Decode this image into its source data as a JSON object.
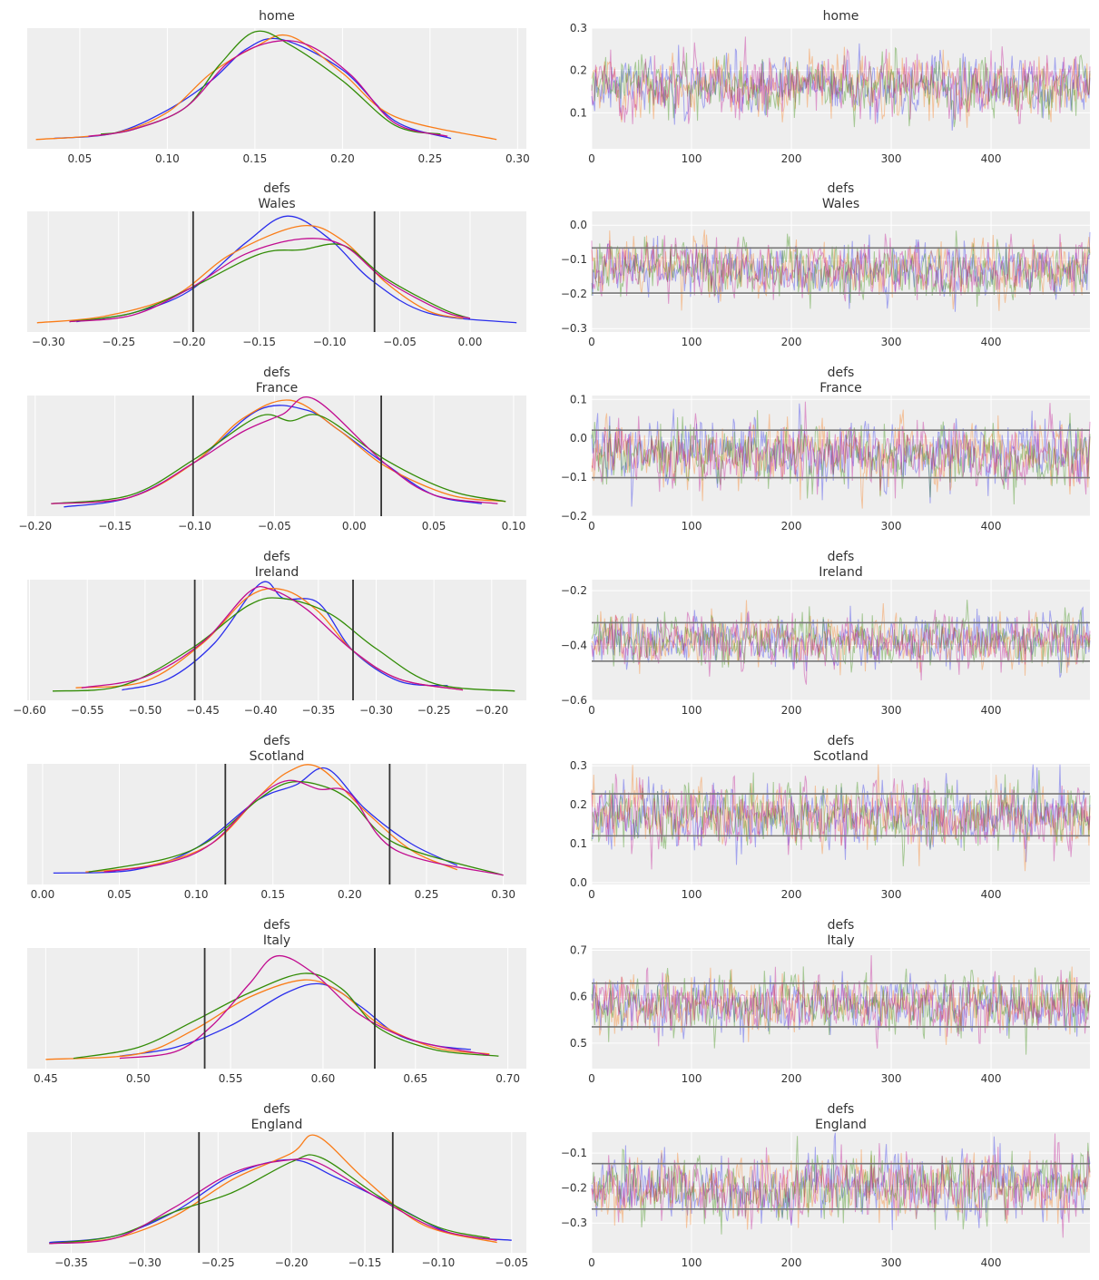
{
  "figure": {
    "type": "arviz-traceplot",
    "chains": 4,
    "draws": 500
  },
  "colors": {
    "chains": [
      "#2a2eec",
      "#fa7c17",
      "#328c06",
      "#c10c90"
    ],
    "panel_bg": "#eeeeee",
    "grid": "#ffffff",
    "ref_line_kde": "#333333",
    "ref_line_trace": "#777777"
  },
  "chart_data": [
    {
      "type": "line",
      "panel": "kde",
      "title": "home",
      "subtitle": "",
      "xlim": [
        0.02,
        0.305
      ],
      "xticks": [
        "0.05",
        "0.10",
        "0.15",
        "0.20",
        "0.25",
        "0.30"
      ],
      "yticks": [],
      "grid": true,
      "ref_lines": [],
      "series": [
        {
          "x": [
            0.035,
            0.07,
            0.1,
            0.125,
            0.145,
            0.165,
            0.2,
            0.23,
            0.262
          ],
          "y": [
            0.02,
            0.07,
            0.28,
            0.55,
            0.84,
            0.93,
            0.65,
            0.18,
            0.02
          ]
        },
        {
          "x": [
            0.025,
            0.07,
            0.1,
            0.125,
            0.15,
            0.17,
            0.2,
            0.23,
            0.288
          ],
          "y": [
            0.01,
            0.07,
            0.26,
            0.62,
            0.86,
            0.96,
            0.62,
            0.22,
            0.01
          ]
        },
        {
          "x": [
            0.062,
            0.08,
            0.11,
            0.13,
            0.15,
            0.17,
            0.2,
            0.23,
            0.256
          ],
          "y": [
            0.06,
            0.1,
            0.3,
            0.7,
            1.0,
            0.88,
            0.55,
            0.14,
            0.06
          ]
        },
        {
          "x": [
            0.055,
            0.08,
            0.11,
            0.135,
            0.158,
            0.18,
            0.205,
            0.23,
            0.26
          ],
          "y": [
            0.04,
            0.1,
            0.3,
            0.72,
            0.9,
            0.88,
            0.6,
            0.16,
            0.04
          ]
        }
      ]
    },
    {
      "type": "line",
      "panel": "trace",
      "title": "home",
      "subtitle": "",
      "xlim": [
        0,
        499
      ],
      "ylim": [
        0.015,
        0.3
      ],
      "xticks": [
        "0",
        "100",
        "200",
        "300",
        "400"
      ],
      "yticks": [
        "0.1",
        "0.2",
        "0.3"
      ],
      "center": 0.163,
      "spread": 0.035,
      "ref_lines": []
    },
    {
      "type": "line",
      "panel": "kde",
      "title": "defs",
      "subtitle": "Wales",
      "xlim": [
        -0.315,
        0.04
      ],
      "xticks": [
        "−0.30",
        "−0.25",
        "−0.20",
        "−0.15",
        "−0.10",
        "−0.05",
        "0.00"
      ],
      "yticks": [],
      "grid": true,
      "ref_lines": [
        -0.197,
        -0.068
      ],
      "series": [
        {
          "x": [
            -0.28,
            -0.24,
            -0.2,
            -0.16,
            -0.13,
            -0.1,
            -0.07,
            -0.03,
            0.033
          ],
          "y": [
            0.02,
            0.1,
            0.3,
            0.74,
            0.99,
            0.78,
            0.4,
            0.1,
            0.01
          ]
        },
        {
          "x": [
            -0.308,
            -0.26,
            -0.21,
            -0.17,
            -0.12,
            -0.09,
            -0.06,
            -0.03,
            -0.005
          ],
          "y": [
            0.01,
            0.07,
            0.26,
            0.64,
            0.9,
            0.76,
            0.38,
            0.12,
            0.05
          ]
        },
        {
          "x": [
            -0.285,
            -0.24,
            -0.2,
            -0.15,
            -0.12,
            -0.09,
            -0.06,
            -0.02,
            0.0
          ],
          "y": [
            0.02,
            0.1,
            0.32,
            0.64,
            0.68,
            0.72,
            0.42,
            0.14,
            0.05
          ]
        },
        {
          "x": [
            -0.285,
            -0.24,
            -0.2,
            -0.16,
            -0.12,
            -0.09,
            -0.06,
            -0.02,
            0.0
          ],
          "y": [
            0.02,
            0.08,
            0.32,
            0.64,
            0.78,
            0.72,
            0.4,
            0.12,
            0.05
          ]
        }
      ]
    },
    {
      "type": "line",
      "panel": "trace",
      "title": "defs",
      "subtitle": "Wales",
      "xlim": [
        0,
        499
      ],
      "ylim": [
        -0.31,
        0.04
      ],
      "xticks": [
        "0",
        "100",
        "200",
        "300",
        "400"
      ],
      "yticks": [
        "−0.3",
        "−0.2",
        "−0.1",
        "0.0"
      ],
      "center": -0.13,
      "spread": 0.04,
      "ref_lines": [
        -0.197,
        -0.066
      ]
    },
    {
      "type": "line",
      "panel": "kde",
      "title": "defs",
      "subtitle": "France",
      "xlim": [
        -0.205,
        0.108
      ],
      "xticks": [
        "−0.20",
        "−0.15",
        "−0.10",
        "−0.05",
        "0.00",
        "0.05",
        "0.10"
      ],
      "yticks": [],
      "grid": true,
      "ref_lines": [
        -0.101,
        0.017
      ],
      "series": [
        {
          "x": [
            -0.182,
            -0.14,
            -0.1,
            -0.06,
            -0.03,
            -0.01,
            0.02,
            0.05,
            0.08
          ],
          "y": [
            0.01,
            0.1,
            0.42,
            0.9,
            0.9,
            0.72,
            0.4,
            0.12,
            0.04
          ]
        },
        {
          "x": [
            -0.19,
            -0.14,
            -0.1,
            -0.07,
            -0.04,
            -0.01,
            0.02,
            0.06,
            0.095
          ],
          "y": [
            0.04,
            0.1,
            0.42,
            0.82,
            0.99,
            0.72,
            0.38,
            0.12,
            0.06
          ]
        },
        {
          "x": [
            -0.19,
            -0.14,
            -0.1,
            -0.06,
            -0.04,
            -0.02,
            0.02,
            0.06,
            0.095
          ],
          "y": [
            0.04,
            0.12,
            0.45,
            0.84,
            0.8,
            0.84,
            0.44,
            0.16,
            0.06
          ]
        },
        {
          "x": [
            -0.19,
            -0.14,
            -0.1,
            -0.07,
            -0.045,
            -0.025,
            0.02,
            0.05,
            0.09
          ],
          "y": [
            0.04,
            0.1,
            0.42,
            0.7,
            0.86,
            1.0,
            0.4,
            0.12,
            0.04
          ]
        }
      ]
    },
    {
      "type": "line",
      "panel": "trace",
      "title": "defs",
      "subtitle": "France",
      "xlim": [
        0,
        499
      ],
      "ylim": [
        -0.2,
        0.11
      ],
      "xticks": [
        "0",
        "100",
        "200",
        "300",
        "400"
      ],
      "yticks": [
        "−0.2",
        "−0.1",
        "0.0",
        "0.1"
      ],
      "center": -0.04,
      "spread": 0.04,
      "ref_lines": [
        -0.101,
        0.021
      ]
    },
    {
      "type": "line",
      "panel": "kde",
      "title": "defs",
      "subtitle": "Ireland",
      "xlim": [
        -0.602,
        -0.17
      ],
      "xticks": [
        "−0.60",
        "−0.55",
        "−0.50",
        "−0.45",
        "−0.40",
        "−0.35",
        "−0.30",
        "−0.25",
        "−0.20"
      ],
      "yticks": [],
      "grid": true,
      "ref_lines": [
        -0.457,
        -0.32
      ],
      "series": [
        {
          "x": [
            -0.52,
            -0.48,
            -0.44,
            -0.4,
            -0.38,
            -0.35,
            -0.32,
            -0.28,
            -0.238
          ],
          "y": [
            0.02,
            0.12,
            0.45,
            1.0,
            0.86,
            0.82,
            0.38,
            0.1,
            0.06
          ]
        },
        {
          "x": [
            -0.56,
            -0.5,
            -0.45,
            -0.41,
            -0.38,
            -0.35,
            -0.32,
            -0.28,
            -0.225
          ],
          "y": [
            0.04,
            0.1,
            0.45,
            0.88,
            0.94,
            0.74,
            0.38,
            0.12,
            0.02
          ]
        },
        {
          "x": [
            -0.58,
            -0.52,
            -0.46,
            -0.41,
            -0.38,
            -0.34,
            -0.3,
            -0.25,
            -0.18
          ],
          "y": [
            0.01,
            0.06,
            0.4,
            0.8,
            0.86,
            0.72,
            0.4,
            0.08,
            0.01
          ]
        },
        {
          "x": [
            -0.555,
            -0.5,
            -0.45,
            -0.41,
            -0.39,
            -0.36,
            -0.32,
            -0.28,
            -0.225
          ],
          "y": [
            0.04,
            0.14,
            0.46,
            0.92,
            0.94,
            0.76,
            0.38,
            0.12,
            0.02
          ]
        }
      ]
    },
    {
      "type": "line",
      "panel": "trace",
      "title": "defs",
      "subtitle": "Ireland",
      "xlim": [
        0,
        499
      ],
      "ylim": [
        -0.6,
        -0.16
      ],
      "xticks": [
        "0",
        "100",
        "200",
        "300",
        "400"
      ],
      "yticks": [
        "−0.6",
        "−0.4",
        "−0.2"
      ],
      "center": -0.385,
      "spread": 0.045,
      "ref_lines": [
        -0.457,
        -0.317
      ]
    },
    {
      "type": "line",
      "panel": "kde",
      "title": "defs",
      "subtitle": "Scotland",
      "xlim": [
        -0.01,
        0.315
      ],
      "xticks": [
        "0.00",
        "0.05",
        "0.10",
        "0.15",
        "0.20",
        "0.25",
        "0.30"
      ],
      "yticks": [],
      "grid": true,
      "ref_lines": [
        0.119,
        0.226
      ],
      "series": [
        {
          "x": [
            0.007,
            0.06,
            0.1,
            0.14,
            0.165,
            0.185,
            0.21,
            0.24,
            0.27
          ],
          "y": [
            0.03,
            0.06,
            0.26,
            0.7,
            0.84,
            0.99,
            0.62,
            0.3,
            0.1
          ]
        },
        {
          "x": [
            0.028,
            0.07,
            0.11,
            0.14,
            0.16,
            0.18,
            0.21,
            0.24,
            0.27
          ],
          "y": [
            0.04,
            0.1,
            0.3,
            0.72,
            0.96,
            1.0,
            0.6,
            0.24,
            0.06
          ]
        },
        {
          "x": [
            0.03,
            0.08,
            0.11,
            0.14,
            0.16,
            0.18,
            0.2,
            0.23,
            0.3
          ],
          "y": [
            0.04,
            0.16,
            0.34,
            0.7,
            0.86,
            0.84,
            0.7,
            0.3,
            0.01
          ]
        },
        {
          "x": [
            0.04,
            0.08,
            0.11,
            0.14,
            0.16,
            0.18,
            0.2,
            0.23,
            0.3
          ],
          "y": [
            0.04,
            0.12,
            0.3,
            0.72,
            0.88,
            0.8,
            0.76,
            0.24,
            0.01
          ]
        }
      ]
    },
    {
      "type": "line",
      "panel": "trace",
      "title": "defs",
      "subtitle": "Scotland",
      "xlim": [
        0,
        499
      ],
      "ylim": [
        -0.005,
        0.305
      ],
      "xticks": [
        "0",
        "100",
        "200",
        "300",
        "400"
      ],
      "yticks": [
        "0.0",
        "0.1",
        "0.2",
        "0.3"
      ],
      "center": 0.173,
      "spread": 0.04,
      "ref_lines": [
        0.12,
        0.228
      ]
    },
    {
      "type": "line",
      "panel": "kde",
      "title": "defs",
      "subtitle": "Italy",
      "xlim": [
        0.44,
        0.71
      ],
      "xticks": [
        "0.45",
        "0.50",
        "0.55",
        "0.60",
        "0.65",
        "0.70"
      ],
      "yticks": [],
      "grid": true,
      "ref_lines": [
        0.536,
        0.628
      ],
      "series": [
        {
          "x": [
            0.49,
            0.52,
            0.55,
            0.58,
            0.6,
            0.62,
            0.64,
            0.66,
            0.68
          ],
          "y": [
            0.04,
            0.12,
            0.32,
            0.62,
            0.7,
            0.5,
            0.24,
            0.14,
            0.1
          ]
        },
        {
          "x": [
            0.45,
            0.5,
            0.53,
            0.56,
            0.59,
            0.61,
            0.63,
            0.66,
            0.69
          ],
          "y": [
            0.01,
            0.06,
            0.28,
            0.58,
            0.74,
            0.62,
            0.34,
            0.12,
            0.06
          ]
        },
        {
          "x": [
            0.465,
            0.5,
            0.53,
            0.56,
            0.59,
            0.61,
            0.63,
            0.66,
            0.695
          ],
          "y": [
            0.02,
            0.12,
            0.36,
            0.62,
            0.8,
            0.66,
            0.3,
            0.1,
            0.04
          ]
        },
        {
          "x": [
            0.49,
            0.52,
            0.54,
            0.56,
            0.575,
            0.595,
            0.62,
            0.65,
            0.69
          ],
          "y": [
            0.02,
            0.08,
            0.32,
            0.7,
            0.96,
            0.8,
            0.42,
            0.18,
            0.05
          ]
        }
      ]
    },
    {
      "type": "line",
      "panel": "trace",
      "title": "defs",
      "subtitle": "Italy",
      "xlim": [
        0,
        499
      ],
      "ylim": [
        0.445,
        0.705
      ],
      "xticks": [
        "0",
        "100",
        "200",
        "300",
        "400"
      ],
      "yticks": [
        "0.5",
        "0.6",
        "0.7"
      ],
      "center": 0.585,
      "spread": 0.03,
      "ref_lines": [
        0.535,
        0.629
      ]
    },
    {
      "type": "line",
      "panel": "kde",
      "title": "defs",
      "subtitle": "England",
      "xlim": [
        -0.38,
        -0.04
      ],
      "xticks": [
        "−0.35",
        "−0.30",
        "−0.25",
        "−0.20",
        "−0.15",
        "−0.10",
        "−0.05"
      ],
      "yticks": [],
      "grid": true,
      "ref_lines": [
        -0.263,
        -0.131
      ],
      "series": [
        {
          "x": [
            -0.365,
            -0.32,
            -0.28,
            -0.24,
            -0.2,
            -0.17,
            -0.13,
            -0.09,
            -0.05
          ],
          "y": [
            0.02,
            0.08,
            0.3,
            0.64,
            0.78,
            0.62,
            0.36,
            0.1,
            0.04
          ]
        },
        {
          "x": [
            -0.365,
            -0.32,
            -0.28,
            -0.24,
            -0.2,
            -0.183,
            -0.15,
            -0.11,
            -0.06
          ],
          "y": [
            0.01,
            0.06,
            0.26,
            0.6,
            0.84,
            1.0,
            0.6,
            0.18,
            0.02
          ]
        },
        {
          "x": [
            -0.365,
            -0.32,
            -0.28,
            -0.24,
            -0.2,
            -0.18,
            -0.14,
            -0.1,
            -0.065
          ],
          "y": [
            0.01,
            0.08,
            0.3,
            0.48,
            0.76,
            0.8,
            0.44,
            0.16,
            0.06
          ]
        },
        {
          "x": [
            -0.365,
            -0.32,
            -0.28,
            -0.24,
            -0.2,
            -0.18,
            -0.14,
            -0.1,
            -0.06
          ],
          "y": [
            0.01,
            0.06,
            0.34,
            0.66,
            0.78,
            0.74,
            0.42,
            0.14,
            0.04
          ]
        }
      ]
    },
    {
      "type": "line",
      "panel": "trace",
      "title": "defs",
      "subtitle": "England",
      "xlim": [
        0,
        499
      ],
      "ylim": [
        -0.385,
        -0.04
      ],
      "xticks": [
        "0",
        "100",
        "200",
        "300",
        "400"
      ],
      "yticks": [
        "−0.3",
        "−0.2",
        "−0.1"
      ],
      "center": -0.195,
      "spread": 0.045,
      "ref_lines": [
        -0.26,
        -0.13
      ]
    }
  ]
}
